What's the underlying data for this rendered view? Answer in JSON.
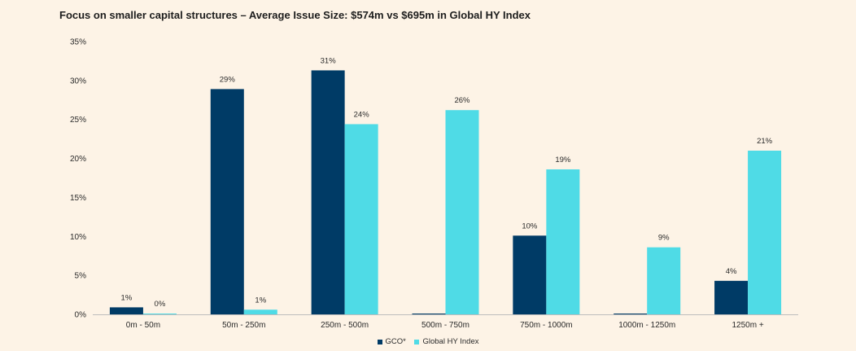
{
  "title": "Focus on smaller capital structures – Average Issue Size: $574m vs $695m in Global HY Index",
  "chart_data": {
    "type": "bar",
    "title": "Focus on smaller capital structures – Average Issue Size: $574m vs $695m in Global HY Index",
    "xlabel": "",
    "ylabel": "",
    "ylim": [
      0,
      35
    ],
    "yticks": [
      "0%",
      "5%",
      "10%",
      "15%",
      "20%",
      "25%",
      "30%",
      "35%"
    ],
    "grid": false,
    "legend_position": "bottom",
    "categories": [
      "0m - 50m",
      "50m - 250m",
      "250m - 500m",
      "500m - 750m",
      "750m - 1000m",
      "1000m - 1250m",
      "1250m +"
    ],
    "series": [
      {
        "name": "GCO*",
        "color": "#003b66",
        "values": [
          0.9,
          28.9,
          31.3,
          0.1,
          10.1,
          0.1,
          4.3
        ],
        "labels": [
          "1%",
          "29%",
          "31%",
          "",
          "10%",
          "",
          "4%"
        ]
      },
      {
        "name": "Global HY Index",
        "color": "#4fdbe6",
        "values": [
          0.0,
          0.6,
          24.4,
          26.2,
          18.6,
          8.6,
          21.0
        ],
        "labels": [
          "0%",
          "1%",
          "24%",
          "26%",
          "19%",
          "9%",
          "21%"
        ]
      }
    ]
  }
}
